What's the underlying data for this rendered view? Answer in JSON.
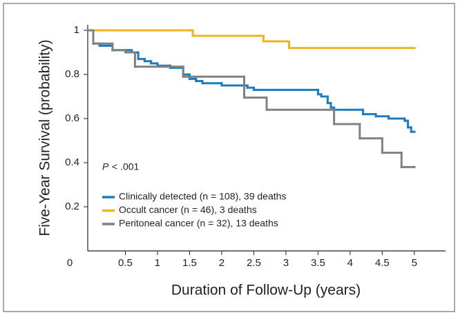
{
  "chart_data": {
    "type": "step",
    "xlabel": "Duration of Follow-Up (years)",
    "ylabel": "Five-Year Survival (probability)",
    "annotation": {
      "variable": "P",
      "text": "< .001"
    },
    "xlim": [
      -0.086,
      5.4
    ],
    "ylim": [
      0,
      1.025
    ],
    "xticks": [
      0.5,
      1.0,
      1.5,
      2.0,
      2.5,
      3.0,
      3.5,
      4.0,
      4.5,
      5.0
    ],
    "yticks": [
      0,
      0.2,
      0.4,
      0.6,
      0.8,
      1.0
    ],
    "series": [
      {
        "name": "Clinically detected (n = 108), 39 deaths",
        "color": "#1a7bbf",
        "x": [
          -0.086,
          0.0,
          0.1,
          0.3,
          0.6,
          0.7,
          0.8,
          0.9,
          1.0,
          1.2,
          1.4,
          1.5,
          1.6,
          1.7,
          2.0,
          2.4,
          2.5,
          3.5,
          3.55,
          3.65,
          3.7,
          3.75,
          4.2,
          4.4,
          4.6,
          4.85,
          4.9,
          4.95,
          5.0
        ],
        "values": [
          1.0,
          0.94,
          0.93,
          0.91,
          0.9,
          0.87,
          0.86,
          0.85,
          0.84,
          0.83,
          0.8,
          0.78,
          0.77,
          0.76,
          0.75,
          0.74,
          0.73,
          0.71,
          0.7,
          0.67,
          0.65,
          0.64,
          0.62,
          0.61,
          0.6,
          0.59,
          0.56,
          0.54,
          0.54
        ]
      },
      {
        "name": "Occult cancer (n = 46), 3 deaths",
        "color": "#f2b21b",
        "x": [
          -0.086,
          1.55,
          2.65,
          3.05,
          5.0
        ],
        "values": [
          1.0,
          0.975,
          0.95,
          0.92,
          0.92
        ]
      },
      {
        "name": "Peritoneal cancer (n = 32), 13 deaths",
        "color": "#808080",
        "x": [
          -0.086,
          0.0,
          0.3,
          0.5,
          0.65,
          1.4,
          2.35,
          2.7,
          3.75,
          4.15,
          4.5,
          4.8,
          5.0
        ],
        "values": [
          1.0,
          0.94,
          0.91,
          0.9,
          0.835,
          0.79,
          0.695,
          0.64,
          0.575,
          0.51,
          0.445,
          0.38,
          0.38
        ]
      }
    ]
  }
}
